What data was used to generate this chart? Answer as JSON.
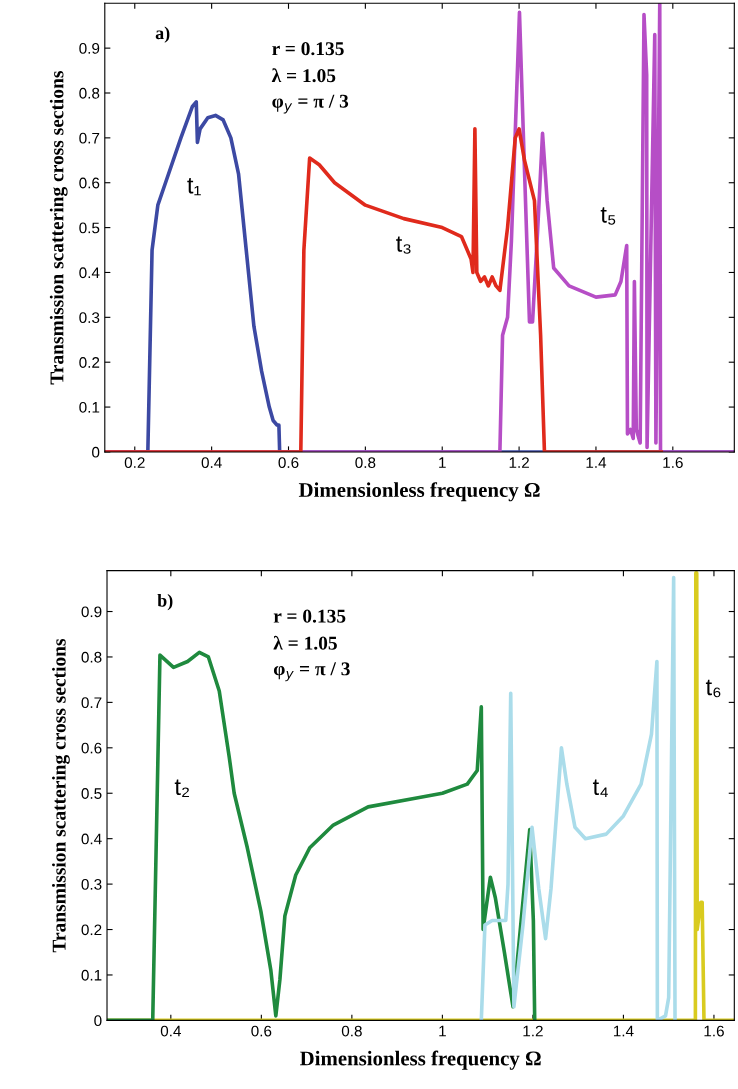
{
  "chart_data": [
    {
      "type": "line",
      "xlabel": "Dimensionless frequency Ω",
      "ylabel": "Transmission scattering cross sections",
      "xlim": [
        0.122,
        1.76
      ],
      "ylim": [
        0,
        1.0
      ],
      "xticks": [
        0.2,
        0.4,
        0.6,
        0.8,
        1,
        1.2,
        1.4,
        1.6
      ],
      "yticks": [
        0,
        0.1,
        0.2,
        0.3,
        0.4,
        0.5,
        0.6,
        0.7,
        0.8,
        0.9
      ],
      "grid": false,
      "line_style": "solid",
      "marker": "none",
      "annotations": [
        "a)",
        "r = 0.135",
        "λ = 1.05",
        "φ$_{y}$ = π / 3"
      ],
      "series": [
        {
          "name": "t₁",
          "color": "#3c49a3",
          "x": [
            0.122,
            0.234,
            0.245,
            0.26,
            0.28,
            0.32,
            0.35,
            0.36,
            0.363,
            0.37,
            0.39,
            0.41,
            0.43,
            0.45,
            0.47,
            0.49,
            0.51,
            0.53,
            0.55,
            0.56,
            0.57,
            0.575,
            0.577,
            1.76
          ],
          "values": [
            0,
            0,
            0.45,
            0.55,
            0.6,
            0.7,
            0.77,
            0.78,
            0.69,
            0.72,
            0.745,
            0.75,
            0.74,
            0.7,
            0.62,
            0.45,
            0.28,
            0.18,
            0.1,
            0.07,
            0.06,
            0.06,
            0,
            0
          ]
        },
        {
          "name": "t₅",
          "color": "#b64ec6",
          "x": [
            0.122,
            1.15,
            1.157,
            1.17,
            1.18,
            1.201,
            1.214,
            1.227,
            1.235,
            1.248,
            1.261,
            1.273,
            1.29,
            1.33,
            1.4,
            1.45,
            1.465,
            1.48,
            1.482,
            1.49,
            1.497,
            1.5,
            1.505,
            1.515,
            1.525,
            1.532,
            1.533,
            1.553,
            1.556,
            1.566,
            1.568,
            1.76
          ],
          "values": [
            0,
            0,
            0.26,
            0.3,
            0.47,
            0.98,
            0.63,
            0.29,
            0.29,
            0.49,
            0.71,
            0.56,
            0.41,
            0.37,
            0.345,
            0.35,
            0.38,
            0.46,
            0.04,
            0.05,
            0.03,
            0.38,
            0.05,
            0.02,
            0.975,
            0.84,
            0.01,
            0.93,
            0.02,
            1.0,
            0,
            0
          ]
        },
        {
          "name": "t₃",
          "color": "#e02a1c",
          "x": [
            0.122,
            0.632,
            0.64,
            0.655,
            0.68,
            0.72,
            0.8,
            0.9,
            1.0,
            1.05,
            1.075,
            1.08,
            1.085,
            1.09,
            1.1,
            1.11,
            1.12,
            1.13,
            1.14,
            1.15,
            1.17,
            1.19,
            1.2,
            1.214,
            1.24,
            1.256,
            1.266,
            1.57
          ],
          "values": [
            0,
            0,
            0.45,
            0.655,
            0.64,
            0.6,
            0.55,
            0.52,
            0.5,
            0.48,
            0.43,
            0.4,
            0.72,
            0.4,
            0.38,
            0.39,
            0.37,
            0.39,
            0.37,
            0.36,
            0.5,
            0.7,
            0.72,
            0.65,
            0.56,
            0.26,
            0,
            0
          ]
        }
      ]
    },
    {
      "type": "line",
      "xlabel": "Dimensionless frequency Ω",
      "ylabel": "Transmission scattering cross sections",
      "xlim": [
        0.259,
        1.645
      ],
      "ylim": [
        0,
        0.99
      ],
      "xticks": [
        0.4,
        0.6,
        0.8,
        1,
        1.2,
        1.4,
        1.6
      ],
      "yticks": [
        0,
        0.1,
        0.2,
        0.3,
        0.4,
        0.5,
        0.6,
        0.7,
        0.8,
        0.9
      ],
      "grid": false,
      "line_style": "solid",
      "marker": "none",
      "annotations": [
        "b)",
        "r = 0.135",
        "λ = 1.05",
        "φ$_{y}$ = π / 3"
      ],
      "series": [
        {
          "name": "t₆",
          "color": "#d9cb1f",
          "x": [
            0.259,
            1.559,
            1.56,
            1.562,
            1.563,
            1.571,
            1.574,
            1.578,
            1.645
          ],
          "values": [
            0,
            0,
            0.985,
            0.985,
            0.2,
            0.26,
            0.26,
            0,
            0
          ]
        },
        {
          "name": "t₂",
          "color": "#1f8a3e",
          "x": [
            0.259,
            0.36,
            0.376,
            0.406,
            0.437,
            0.463,
            0.483,
            0.507,
            0.529,
            0.54,
            0.569,
            0.599,
            0.621,
            0.632,
            0.641,
            0.652,
            0.676,
            0.707,
            0.759,
            0.836,
            0.946,
            1.0,
            1.055,
            1.077,
            1.086,
            1.09,
            1.106,
            1.117,
            1.137,
            1.156,
            1.193,
            1.201,
            1.204
          ],
          "values": [
            0,
            0,
            0.804,
            0.777,
            0.79,
            0.81,
            0.8,
            0.725,
            0.58,
            0.5,
            0.38,
            0.24,
            0.11,
            0.01,
            0.09,
            0.23,
            0.32,
            0.38,
            0.43,
            0.47,
            0.49,
            0.5,
            0.52,
            0.55,
            0.69,
            0.2,
            0.315,
            0.27,
            0.15,
            0.03,
            0.42,
            0.22,
            0
          ]
        },
        {
          "name": "t₄",
          "color": "#aadcea",
          "x": [
            1.086,
            1.094,
            1.11,
            1.14,
            1.145,
            1.151,
            1.158,
            1.178,
            1.198,
            1.213,
            1.228,
            1.24,
            1.263,
            1.275,
            1.293,
            1.316,
            1.362,
            1.4,
            1.439,
            1.462,
            1.474,
            1.475,
            1.493,
            1.5,
            1.511,
            1.514
          ],
          "values": [
            0,
            0.21,
            0.22,
            0.22,
            0.3,
            0.72,
            0.03,
            0.21,
            0.425,
            0.29,
            0.18,
            0.29,
            0.6,
            0.52,
            0.425,
            0.4,
            0.41,
            0.45,
            0.52,
            0.63,
            0.79,
            0,
            0.01,
            0.05,
            0.975,
            0
          ]
        }
      ]
    }
  ]
}
